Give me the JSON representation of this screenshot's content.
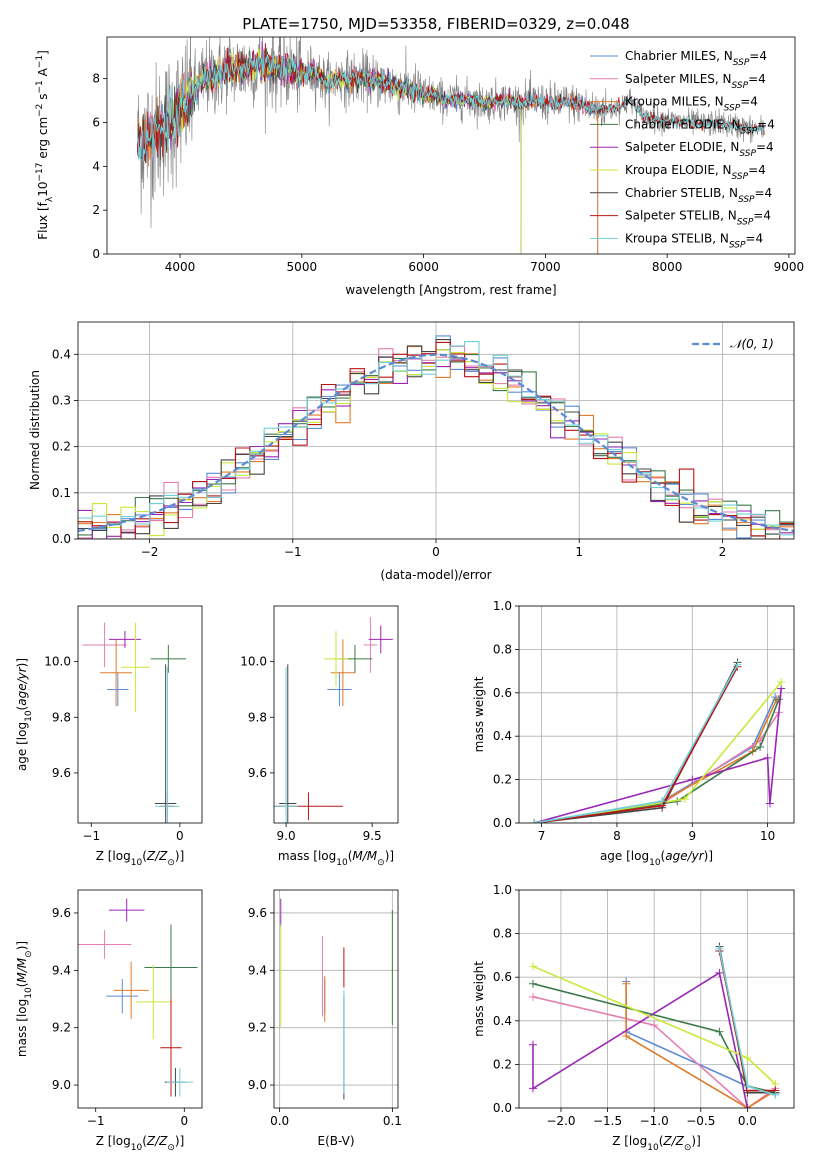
{
  "figure_title": "PLATE=1750, MJD=53358, FIBERID=0329, z=0.048",
  "colors": {
    "Chabrier MILES": "#5b8bd6",
    "Salpeter MILES": "#e47fb0",
    "Kroupa MILES": "#e07b2a",
    "Chabrier ELODIE": "#3f7a4a",
    "Salpeter ELODIE": "#9b26b6",
    "Kroupa ELODIE": "#c9e83a",
    "Chabrier STELIB": "#444444",
    "Salpeter STELIB": "#b81414",
    "Kroupa STELIB": "#70d0d8",
    "gaussian": "#5b8bd6",
    "observed": "#808080"
  },
  "chart_data": [
    {
      "type": "line",
      "title": "PLATE=1750, MJD=53358, FIBERID=0329, z=0.048",
      "xlabel": "wavelength [Angstrom, rest frame]",
      "ylabel": "Flux [f_λ 10^-17 erg cm^-2 s^-1 A^-1]",
      "xlim": [
        3400,
        9050
      ],
      "ylim": [
        0,
        9.9
      ],
      "xticks": [
        4000,
        5000,
        6000,
        7000,
        8000,
        9000
      ],
      "yticks": [
        0,
        2,
        4,
        6,
        8
      ],
      "legend_position": "top-right",
      "legend": [
        {
          "name": "Chabrier MILES",
          "ssp": "4"
        },
        {
          "name": "Salpeter MILES",
          "ssp": "4"
        },
        {
          "name": "Kroupa MILES",
          "ssp": "4"
        },
        {
          "name": "Chabrier ELODIE",
          "ssp": "4"
        },
        {
          "name": "Salpeter ELODIE",
          "ssp": "4"
        },
        {
          "name": "Kroupa ELODIE",
          "ssp": "4"
        },
        {
          "name": "Chabrier STELIB",
          "ssp": "4"
        },
        {
          "name": "Salpeter STELIB",
          "ssp": "4"
        },
        {
          "name": "Kroupa STELIB",
          "ssp": "4"
        }
      ],
      "continuum": [
        [
          3650,
          5.0
        ],
        [
          3700,
          5.2
        ],
        [
          3800,
          5.5
        ],
        [
          3900,
          6.0
        ],
        [
          4000,
          6.5
        ],
        [
          4100,
          7.3
        ],
        [
          4200,
          8.0
        ],
        [
          4300,
          8.1
        ],
        [
          4400,
          8.5
        ],
        [
          4500,
          8.4
        ],
        [
          4600,
          8.6
        ],
        [
          4700,
          8.6
        ],
        [
          4800,
          8.5
        ],
        [
          4900,
          8.4
        ],
        [
          5000,
          8.2
        ],
        [
          5100,
          8.3
        ],
        [
          5200,
          7.8
        ],
        [
          5300,
          8.0
        ],
        [
          5400,
          8.0
        ],
        [
          5500,
          8.0
        ],
        [
          5600,
          7.9
        ],
        [
          5700,
          7.8
        ],
        [
          5800,
          7.6
        ],
        [
          5900,
          7.5
        ],
        [
          6000,
          7.3
        ],
        [
          6100,
          7.2
        ],
        [
          6200,
          7.0
        ],
        [
          6300,
          7.1
        ],
        [
          6400,
          7.0
        ],
        [
          6500,
          6.9
        ],
        [
          6600,
          7.0
        ],
        [
          6700,
          7.0
        ],
        [
          6800,
          6.9
        ],
        [
          6900,
          7.0
        ],
        [
          7000,
          6.9
        ],
        [
          7100,
          6.9
        ],
        [
          7200,
          6.9
        ],
        [
          7300,
          6.8
        ],
        [
          7400,
          6.6
        ],
        [
          7500,
          6.6
        ],
        [
          7600,
          6.7
        ],
        [
          7700,
          7.0
        ],
        [
          7800,
          6.3
        ],
        [
          7900,
          6.2
        ],
        [
          8000,
          6.1
        ],
        [
          8100,
          6.0
        ],
        [
          8200,
          6.0
        ],
        [
          8300,
          5.9
        ],
        [
          8400,
          6.0
        ],
        [
          8500,
          5.9
        ],
        [
          8600,
          5.8
        ],
        [
          8700,
          5.7
        ],
        [
          8800,
          5.7
        ]
      ],
      "model_ranges": {
        "MILES": [
          3650,
          7430
        ],
        "ELODIE": [
          3900,
          6800
        ],
        "STELIB": [
          3650,
          8800
        ]
      },
      "observed_range": [
        3650,
        8800
      ]
    },
    {
      "type": "line",
      "xlabel": "(data-model)/error",
      "ylabel": "Normed distribution",
      "xlim": [
        -2.5,
        2.5
      ],
      "ylim": [
        0,
        0.47
      ],
      "xticks": [
        -2,
        -1,
        0,
        1,
        2
      ],
      "yticks": [
        0.0,
        0.1,
        0.2,
        0.3,
        0.4
      ],
      "legend_position": "top-right",
      "gaussian_label": "𝒩(0, 1)",
      "grid": true,
      "bins": 50,
      "bin_width": 0.1
    },
    {
      "type": "scatter",
      "xlabel": "Z [log10(Z/Z⊙)]",
      "ylabel": "age [log10(age/yr)]",
      "xlim": [
        -1.15,
        0.25
      ],
      "ylim": [
        9.42,
        10.2
      ],
      "xticks": [
        -1,
        0
      ],
      "yticks": [
        9.6,
        9.8,
        10.0
      ],
      "points": [
        {
          "model": "Chabrier MILES",
          "x": -0.7,
          "y": 9.9,
          "xerr": 0.12,
          "yerr": 0.06
        },
        {
          "model": "Salpeter MILES",
          "x": -0.85,
          "y": 10.06,
          "xerr": 0.25,
          "yerr": 0.08
        },
        {
          "model": "Kroupa MILES",
          "x": -0.72,
          "y": 9.96,
          "xerr": 0.18,
          "yerr": 0.12
        },
        {
          "model": "Chabrier ELODIE",
          "x": -0.13,
          "y": 10.01,
          "xerr": 0.2,
          "yerr": 0.05
        },
        {
          "model": "Salpeter ELODIE",
          "x": -0.62,
          "y": 10.08,
          "xerr": 0.18,
          "yerr": 0.03
        },
        {
          "model": "Kroupa ELODIE",
          "x": -0.5,
          "y": 9.98,
          "xerr": 0.16,
          "yerr": 0.16
        },
        {
          "model": "Chabrier STELIB",
          "x": -0.16,
          "y": 9.49,
          "xerr": 0.12,
          "yerr": 0.5
        },
        {
          "model": "Salpeter STELIB",
          "x": -0.14,
          "y": 9.48,
          "xerr": 0.08,
          "yerr": 0.05
        },
        {
          "model": "Kroupa STELIB",
          "x": -0.14,
          "y": 9.48,
          "xerr": 0.14,
          "yerr": 0.5
        }
      ]
    },
    {
      "type": "scatter",
      "xlabel": "mass [log10(M/M⊙)]",
      "ylabel": "",
      "xlim": [
        8.93,
        9.65
      ],
      "ylim": [
        9.42,
        10.2
      ],
      "xticks": [
        9.0,
        9.5
      ],
      "yticks": [
        9.6,
        9.8,
        10.0
      ],
      "points": [
        {
          "model": "Chabrier MILES",
          "x": 9.31,
          "y": 9.9,
          "xerr": 0.07,
          "yerr": 0.06
        },
        {
          "model": "Salpeter MILES",
          "x": 9.49,
          "y": 10.06,
          "xerr": 0.04,
          "yerr": 0.1
        },
        {
          "model": "Kroupa MILES",
          "x": 9.33,
          "y": 9.96,
          "xerr": 0.07,
          "yerr": 0.12
        },
        {
          "model": "Chabrier ELODIE",
          "x": 9.4,
          "y": 10.01,
          "xerr": 0.1,
          "yerr": 0.05
        },
        {
          "model": "Salpeter ELODIE",
          "x": 9.55,
          "y": 10.08,
          "xerr": 0.07,
          "yerr": 0.05
        },
        {
          "model": "Kroupa ELODIE",
          "x": 9.29,
          "y": 10.01,
          "xerr": 0.07,
          "yerr": 0.1
        },
        {
          "model": "Chabrier STELIB",
          "x": 9.01,
          "y": 9.49,
          "xerr": 0.05,
          "yerr": 0.5
        },
        {
          "model": "Salpeter STELIB",
          "x": 9.13,
          "y": 9.48,
          "xerr": 0.2,
          "yerr": 0.05
        },
        {
          "model": "Kroupa STELIB",
          "x": 9.0,
          "y": 9.48,
          "xerr": 0.07,
          "yerr": 0.5
        }
      ]
    },
    {
      "type": "line",
      "xlabel": "age [log10(age/yr)]",
      "ylabel": "mass weight",
      "xlim": [
        6.7,
        10.35
      ],
      "ylim": [
        0,
        1.0
      ],
      "xticks": [
        7,
        8,
        9,
        10
      ],
      "yticks": [
        0.0,
        0.2,
        0.4,
        0.6,
        0.8,
        1.0
      ],
      "grid": true,
      "series": [
        {
          "model": "Chabrier MILES",
          "points": [
            [
              6.9,
              0.0
            ],
            [
              8.6,
              0.1
            ],
            [
              9.8,
              0.35
            ],
            [
              10.1,
              0.58
            ]
          ]
        },
        {
          "model": "Salpeter MILES",
          "points": [
            [
              6.9,
              0.0
            ],
            [
              8.6,
              0.09
            ],
            [
              9.9,
              0.38
            ],
            [
              10.15,
              0.51
            ]
          ]
        },
        {
          "model": "Kroupa MILES",
          "points": [
            [
              6.9,
              0.0
            ],
            [
              8.5,
              0.08
            ],
            [
              9.8,
              0.33
            ],
            [
              10.12,
              0.57
            ]
          ]
        },
        {
          "model": "Chabrier ELODIE",
          "points": [
            [
              6.9,
              0.0
            ],
            [
              8.8,
              0.1
            ],
            [
              9.9,
              0.35
            ],
            [
              10.15,
              0.57
            ]
          ]
        },
        {
          "model": "Salpeter ELODIE",
          "points": [
            [
              6.9,
              0.0
            ],
            [
              9.0,
              0.2
            ],
            [
              10.0,
              0.3
            ],
            [
              10.03,
              0.09
            ],
            [
              10.18,
              0.62
            ]
          ]
        },
        {
          "model": "Kroupa ELODIE",
          "points": [
            [
              6.9,
              0.0
            ],
            [
              8.9,
              0.11
            ],
            [
              10.18,
              0.65
            ]
          ]
        },
        {
          "model": "Chabrier STELIB",
          "points": [
            [
              6.9,
              0.0
            ],
            [
              8.6,
              0.07
            ],
            [
              9.6,
              0.74
            ]
          ]
        },
        {
          "model": "Salpeter STELIB",
          "points": [
            [
              6.9,
              0.0
            ],
            [
              8.6,
              0.08
            ],
            [
              9.6,
              0.72
            ]
          ]
        },
        {
          "model": "Kroupa STELIB",
          "points": [
            [
              6.9,
              0.0
            ],
            [
              8.6,
              0.1
            ],
            [
              9.6,
              0.73
            ]
          ]
        }
      ]
    },
    {
      "type": "scatter",
      "xlabel": "Z [log10(Z/Z⊙)]",
      "ylabel": "mass [log10(M/M⊙)]",
      "xlim": [
        -1.2,
        0.2
      ],
      "ylim": [
        8.92,
        9.68
      ],
      "xticks": [
        -1,
        0
      ],
      "yticks": [
        9.0,
        9.2,
        9.4,
        9.6
      ],
      "points": [
        {
          "model": "Chabrier MILES",
          "x": -0.7,
          "y": 9.31,
          "xerr": 0.18,
          "yerr": 0.06
        },
        {
          "model": "Salpeter MILES",
          "x": -0.9,
          "y": 9.49,
          "xerr": 0.3,
          "yerr": 0.05
        },
        {
          "model": "Kroupa MILES",
          "x": -0.6,
          "y": 9.33,
          "xerr": 0.2,
          "yerr": 0.1
        },
        {
          "model": "Chabrier ELODIE",
          "x": -0.15,
          "y": 9.41,
          "xerr": 0.3,
          "yerr": 0.15
        },
        {
          "model": "Salpeter ELODIE",
          "x": -0.65,
          "y": 9.61,
          "xerr": 0.2,
          "yerr": 0.04
        },
        {
          "model": "Kroupa ELODIE",
          "x": -0.35,
          "y": 9.29,
          "xerr": 0.2,
          "yerr": 0.13
        },
        {
          "model": "Chabrier STELIB",
          "x": -0.1,
          "y": 9.01,
          "xerr": 0.12,
          "yerr": 0.05
        },
        {
          "model": "Salpeter STELIB",
          "x": -0.15,
          "y": 9.13,
          "xerr": 0.12,
          "yerr": 0.17
        },
        {
          "model": "Kroupa STELIB",
          "x": -0.05,
          "y": 9.01,
          "xerr": 0.15,
          "yerr": 0.05
        }
      ]
    },
    {
      "type": "scatter",
      "xlabel": "E(B-V)",
      "ylabel": "",
      "xlim": [
        -0.005,
        0.105
      ],
      "ylim": [
        8.92,
        9.68
      ],
      "xticks": [
        0.0,
        0.1
      ],
      "yticks": [
        9.0,
        9.2,
        9.4,
        9.6
      ],
      "grid": true,
      "points": [
        {
          "model": "Chabrier MILES",
          "x": 0.04,
          "y": 9.31,
          "yerr": 0.06
        },
        {
          "model": "Salpeter MILES",
          "x": 0.038,
          "y": 9.38,
          "yerr": 0.14
        },
        {
          "model": "Kroupa MILES",
          "x": 0.04,
          "y": 9.3,
          "yerr": 0.08
        },
        {
          "model": "Chabrier ELODIE",
          "x": 0.1,
          "y": 9.41,
          "yerr": 0.2
        },
        {
          "model": "Salpeter ELODIE",
          "x": 0.001,
          "y": 9.6,
          "yerr": 0.05
        },
        {
          "model": "Kroupa ELODIE",
          "x": 0.001,
          "y": 9.38,
          "yerr": 0.18
        },
        {
          "model": "Chabrier STELIB",
          "x": 0.057,
          "y": 9.13,
          "yerr": 0.18
        },
        {
          "model": "Salpeter STELIB",
          "x": 0.057,
          "y": 9.41,
          "yerr": 0.07
        },
        {
          "model": "Kroupa STELIB",
          "x": 0.057,
          "y": 9.15,
          "yerr": 0.18
        }
      ]
    },
    {
      "type": "line",
      "xlabel": "Z [log10(Z/Z⊙)]",
      "ylabel": "mass weight",
      "xlim": [
        -2.45,
        0.5
      ],
      "ylim": [
        0,
        1.0
      ],
      "xticks": [
        -2.0,
        -1.5,
        -1.0,
        -0.5,
        0.0
      ],
      "yticks": [
        0.0,
        0.2,
        0.4,
        0.6,
        0.8,
        1.0
      ],
      "grid": true,
      "series": [
        {
          "model": "Chabrier MILES",
          "points": [
            [
              -1.3,
              0.58
            ],
            [
              -1.3,
              0.35
            ],
            [
              0.0,
              0.1
            ],
            [
              0.3,
              0.07
            ]
          ]
        },
        {
          "model": "Salpeter MILES",
          "points": [
            [
              -2.3,
              0.51
            ],
            [
              -1.0,
              0.38
            ],
            [
              0.0,
              0.0
            ],
            [
              0.3,
              0.09
            ]
          ]
        },
        {
          "model": "Kroupa MILES",
          "points": [
            [
              -1.3,
              0.57
            ],
            [
              -1.3,
              0.33
            ],
            [
              0.0,
              0.0
            ],
            [
              0.3,
              0.08
            ]
          ]
        },
        {
          "model": "Chabrier ELODIE",
          "points": [
            [
              -2.3,
              0.57
            ],
            [
              -0.3,
              0.35
            ],
            [
              0.0,
              0.1
            ],
            [
              0.3,
              0.07
            ]
          ]
        },
        {
          "model": "Salpeter ELODIE",
          "points": [
            [
              -2.3,
              0.29
            ],
            [
              -2.3,
              0.09
            ],
            [
              -0.3,
              0.62
            ],
            [
              0.0,
              0.0
            ]
          ]
        },
        {
          "model": "Kroupa ELODIE",
          "points": [
            [
              -2.3,
              0.65
            ],
            [
              0.0,
              0.23
            ],
            [
              0.3,
              0.11
            ]
          ]
        },
        {
          "model": "Chabrier STELIB",
          "points": [
            [
              -0.3,
              0.74
            ],
            [
              0.0,
              0.07
            ],
            [
              0.3,
              0.07
            ]
          ]
        },
        {
          "model": "Salpeter STELIB",
          "points": [
            [
              -0.3,
              0.72
            ],
            [
              0.0,
              0.08
            ],
            [
              0.3,
              0.08
            ]
          ]
        },
        {
          "model": "Kroupa STELIB",
          "points": [
            [
              -0.3,
              0.73
            ],
            [
              0.0,
              0.1
            ],
            [
              0.3,
              0.06
            ]
          ]
        }
      ]
    }
  ]
}
